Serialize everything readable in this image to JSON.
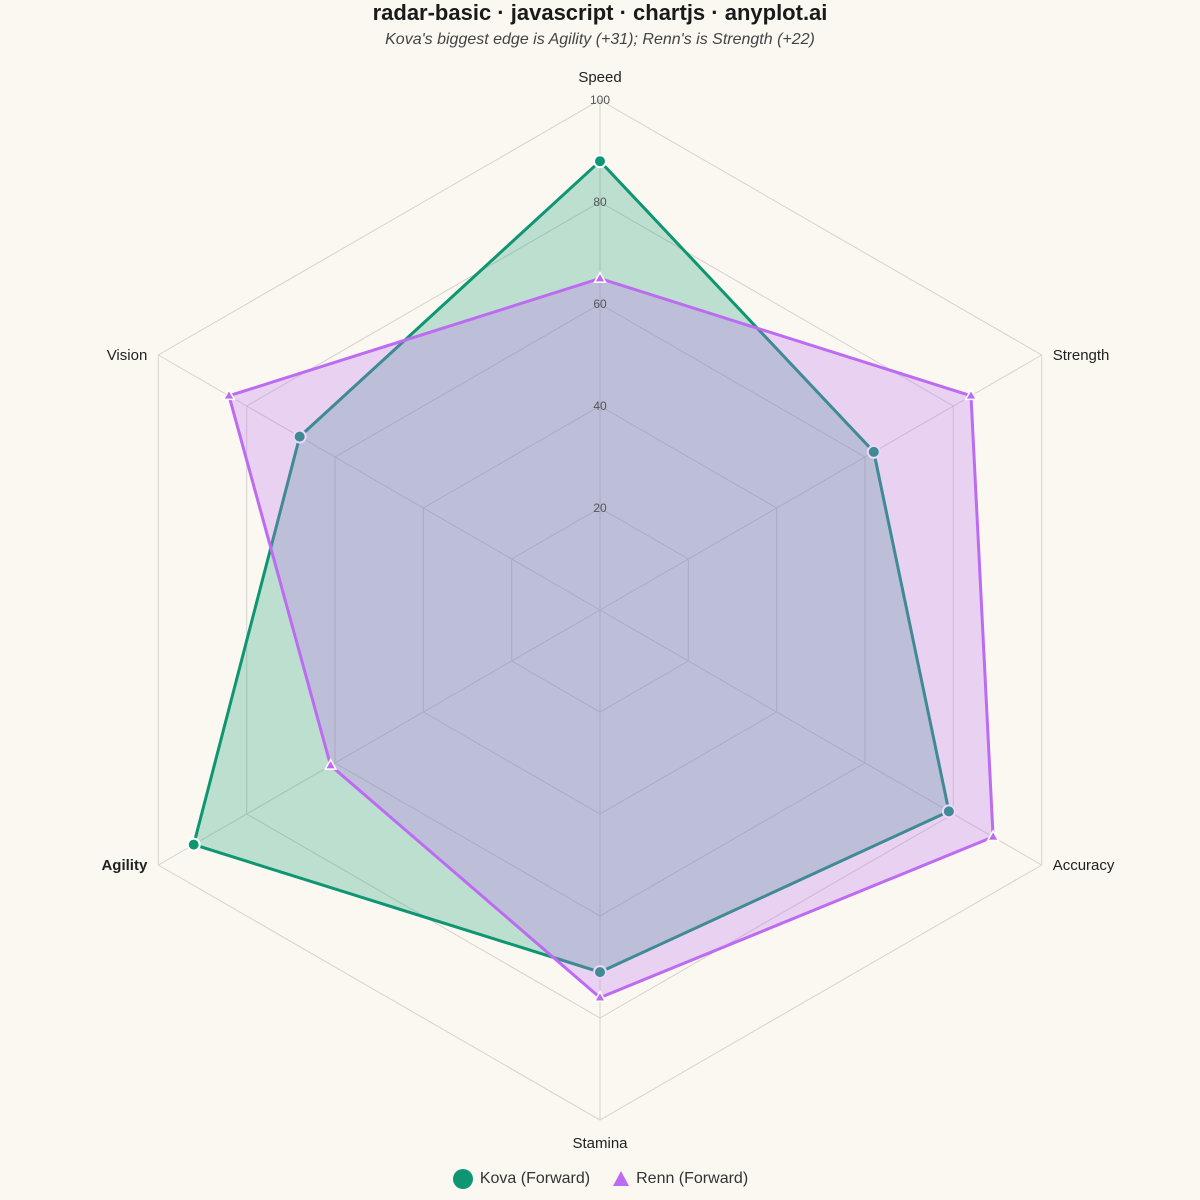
{
  "title": "radar-basic · javascript · chartjs · anyplot.ai",
  "subtitle": "Kova's biggest edge is Agility (+31); Renn's is Strength (+22)",
  "colors": {
    "background": "#FAF8F1",
    "grid": "#D6D3CC",
    "tick_label": "#555555",
    "axis_label": "#222222"
  },
  "chart_data": {
    "type": "radar",
    "axes": [
      "Speed",
      "Strength",
      "Accuracy",
      "Stamina",
      "Agility",
      "Vision"
    ],
    "highlighted_axis": "Agility",
    "rmin": 0,
    "rmax": 100,
    "ticks": [
      20,
      40,
      60,
      80,
      100
    ],
    "tick_labels": [
      "20",
      "40",
      "60",
      "80",
      "100"
    ],
    "grid": true,
    "legend_position": "bottom",
    "series": [
      {
        "name": "Kova (Forward)",
        "values": [
          88,
          62,
          79,
          71,
          92,
          68
        ],
        "color": "#0E9672",
        "fill": "rgba(14,150,114,0.26)",
        "marker": "circle"
      },
      {
        "name": "Renn (Forward)",
        "values": [
          65,
          84,
          89,
          76,
          61,
          84
        ],
        "color": "#BD6CF2",
        "fill": "rgba(189,108,242,0.28)",
        "marker": "triangle"
      }
    ]
  }
}
